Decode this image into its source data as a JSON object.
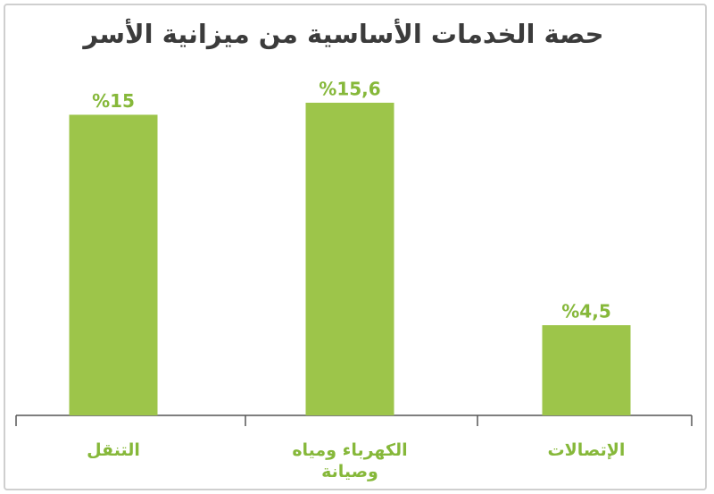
{
  "chart_data": {
    "type": "bar",
    "title": "حصة الخدمات الأساسية من ميزانية الأسر",
    "categories": [
      "التنقل",
      "الكهرباء ومياه وصيانة",
      "الإتصالات"
    ],
    "values": [
      15,
      15.6,
      4.5
    ],
    "value_labels": [
      "%15",
      "%15,6",
      "%4,5"
    ],
    "color": "#9dc54a"
  }
}
